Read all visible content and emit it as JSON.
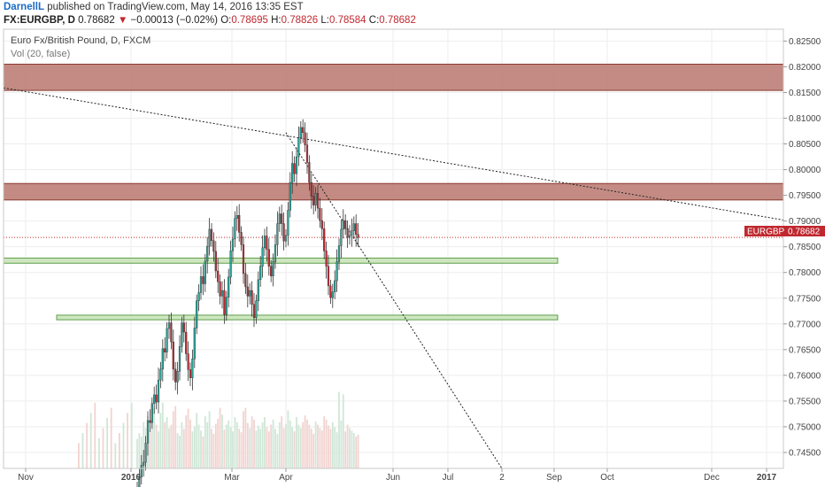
{
  "header": {
    "author": "DarnellL",
    "published_text": "published on TradingView.com, May 14, 2016 13:35 EST",
    "symbol": "FX:EURGBP, D",
    "last": "0.78682",
    "change_arrow": "▼",
    "change": "−0.00013 (−0.02%)",
    "o_label": "O:",
    "o_value": "0.78695",
    "h_label": "H:",
    "h_value": "0.78826",
    "l_label": "L:",
    "l_value": "0.78584",
    "c_label": "C:",
    "c_value": "0.78682"
  },
  "legend": {
    "title": "Euro Fx/British Pound, D, FXCM",
    "volume": "Vol (20, false)"
  },
  "price_tag": {
    "label": "EURGBP",
    "value": "0.78682"
  },
  "colors": {
    "up": "#26a69a",
    "down": "#c0282f",
    "resistance_fill": "#b9776d",
    "support_fill": "#c9e4b9",
    "vol_up": "#cfe7d7",
    "vol_down": "#f2d3d0"
  },
  "chart_data": {
    "type": "candlestick",
    "title": "Euro Fx/British Pound, D, FXCM",
    "y_ticks": [
      "0.82500",
      "0.82000",
      "0.81500",
      "0.81000",
      "0.80500",
      "0.80000",
      "0.79500",
      "0.79000",
      "0.78500",
      "0.78000",
      "0.77500",
      "0.77000",
      "0.76500",
      "0.76000",
      "0.75500",
      "0.75000",
      "0.74500"
    ],
    "x_ticks": [
      "Nov",
      "2016",
      "Mar",
      "Apr",
      "Jun",
      "Jul",
      "2",
      "Sep",
      "Oct",
      "Dec",
      "2017"
    ],
    "ylim": [
      0.7419,
      0.8273
    ],
    "last_price": 0.78682,
    "zones": [
      {
        "kind": "resistance",
        "y_low": 0.8154,
        "y_high": 0.8205,
        "from": "Oct 2015",
        "to": "Jan 2017"
      },
      {
        "kind": "resistance",
        "y_low": 0.7941,
        "y_high": 0.7973,
        "from": "Oct 2015",
        "to": "Jan 2017"
      },
      {
        "kind": "support",
        "y_low": 0.7818,
        "y_high": 0.7828,
        "from": "Oct 2015",
        "to": "Sep 2016"
      },
      {
        "kind": "support",
        "y_low": 0.7708,
        "y_high": 0.7717,
        "from": "Dec 2015",
        "to": "Sep 2016"
      }
    ],
    "trendlines": [
      {
        "from_date": "Oct 2015",
        "from_price": 0.8159,
        "to_date": "Jan 2017",
        "to_price": 0.7902
      },
      {
        "from_date": "Apr 2016",
        "from_price": 0.8072,
        "to_date": "Aug 2016",
        "to_price": 0.7419
      }
    ],
    "candles": {
      "start": "Dec 31 2015",
      "interval": "1 trading day",
      "closes": [
        0.7381,
        0.7402,
        0.7425,
        0.7431,
        0.7468,
        0.7512,
        0.7508,
        0.7545,
        0.7562,
        0.7548,
        0.7591,
        0.7612,
        0.7652,
        0.7645,
        0.7691,
        0.7702,
        0.7665,
        0.7612,
        0.7587,
        0.7608,
        0.7656,
        0.7702,
        0.7684,
        0.7642,
        0.7611,
        0.7595,
        0.7632,
        0.7692,
        0.7745,
        0.7761,
        0.7792,
        0.7778,
        0.7822,
        0.7851,
        0.7884,
        0.7862,
        0.7841,
        0.7803,
        0.7782,
        0.7754,
        0.7765,
        0.7718,
        0.7752,
        0.7791,
        0.7842,
        0.7865,
        0.7905,
        0.7911,
        0.7878,
        0.7854,
        0.7798,
        0.7772,
        0.7754,
        0.7765,
        0.7738,
        0.7712,
        0.7745,
        0.7786,
        0.7812,
        0.7848,
        0.7871,
        0.7845,
        0.7812,
        0.7793,
        0.7821,
        0.7854,
        0.7895,
        0.7914,
        0.7895,
        0.7861,
        0.7872,
        0.7921,
        0.7975,
        0.8012,
        0.7992,
        0.8025,
        0.8062,
        0.8082,
        0.8072,
        0.8048,
        0.8014,
        0.7975,
        0.7948,
        0.7931,
        0.7954,
        0.7925,
        0.7901,
        0.7885,
        0.7842,
        0.7812,
        0.7774,
        0.7751,
        0.7762,
        0.7784,
        0.7821,
        0.7852,
        0.7884,
        0.7901,
        0.7885,
        0.7868,
        0.7872,
        0.7881,
        0.7895,
        0.7874,
        0.7868
      ],
      "volume_scale": [
        0.35,
        0.42,
        0.38,
        0.55,
        0.48,
        0.62,
        0.45,
        0.58,
        0.72,
        0.52,
        0.44,
        0.66,
        0.78,
        0.55,
        0.61,
        0.48,
        0.52,
        0.68,
        0.74,
        0.42,
        0.39,
        0.55,
        0.47,
        0.63,
        0.71,
        0.58,
        0.44,
        0.5,
        0.66,
        0.52,
        0.45,
        0.38,
        0.62,
        0.55,
        0.68,
        0.47,
        0.41,
        0.53,
        0.59,
        0.72,
        0.64,
        0.46,
        0.52,
        0.57,
        0.49,
        0.44,
        0.61,
        0.55,
        0.47,
        0.43,
        0.68,
        0.72,
        0.54,
        0.48,
        0.62,
        0.58,
        0.45,
        0.51,
        0.47,
        0.55,
        0.61,
        0.49,
        0.44,
        0.52,
        0.58,
        0.47,
        0.41,
        0.55,
        0.62,
        0.48,
        0.53,
        0.69,
        0.57,
        0.49,
        0.44,
        0.61,
        0.52,
        0.48,
        0.55,
        0.63,
        0.58,
        0.52,
        0.47,
        0.41,
        0.56,
        0.52,
        0.48,
        0.45,
        0.62,
        0.58,
        0.51,
        0.47,
        0.55,
        0.49,
        0.43,
        0.91,
        0.57,
        0.88,
        0.44,
        0.52,
        0.48,
        0.45,
        0.42,
        0.38,
        0.4
      ]
    }
  }
}
